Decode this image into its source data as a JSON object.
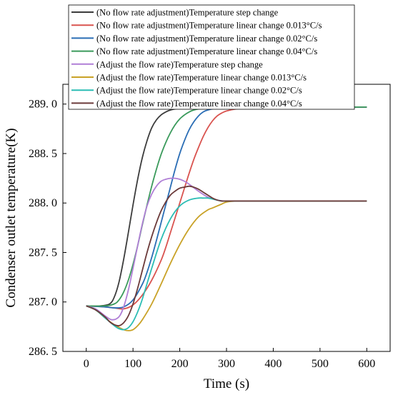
{
  "chart_data": {
    "type": "line",
    "xlabel": "Time (s)",
    "ylabel": "Condenser outlet temperature(K)",
    "xlim": [
      -50,
      650
    ],
    "ylim": [
      286.5,
      289.2
    ],
    "xticks": [
      0,
      100,
      200,
      300,
      400,
      500,
      600
    ],
    "yticks": [
      286.5,
      287.0,
      287.5,
      288.0,
      288.5,
      289.0
    ],
    "xtick_labels": [
      "0",
      "100",
      "200",
      "300",
      "400",
      "500",
      "600"
    ],
    "ytick_labels": [
      "286. 5",
      "287. 0",
      "287. 5",
      "288. 0",
      "288. 5",
      "289. 0"
    ],
    "legend_position": "top-left",
    "series": [
      {
        "name": "(No flow rate adjustment)Temperature step change",
        "color": "#3c3c3c",
        "x": [
          0,
          30,
          50,
          60,
          70,
          80,
          90,
          100,
          110,
          120,
          130,
          140,
          150,
          160,
          170,
          180,
          190,
          200,
          220,
          240,
          260,
          300,
          400,
          600
        ],
        "y": [
          286.96,
          286.96,
          286.98,
          287.05,
          287.2,
          287.43,
          287.7,
          287.98,
          288.24,
          288.46,
          288.63,
          288.76,
          288.84,
          288.89,
          288.92,
          288.94,
          288.95,
          288.96,
          288.965,
          288.97,
          288.97,
          288.97,
          288.97,
          288.97
        ]
      },
      {
        "name": "(No flow rate adjustment)Temperature linear change 0.013°C/s",
        "color": "#d9534f",
        "x": [
          0,
          40,
          60,
          80,
          100,
          120,
          140,
          160,
          170,
          180,
          190,
          200,
          210,
          220,
          230,
          240,
          250,
          260,
          270,
          280,
          290,
          300,
          320,
          350,
          400,
          600
        ],
        "y": [
          286.96,
          286.95,
          286.94,
          286.93,
          286.97,
          287.07,
          287.22,
          287.42,
          287.55,
          287.7,
          287.85,
          288.0,
          288.15,
          288.3,
          288.44,
          288.56,
          288.67,
          288.76,
          288.83,
          288.88,
          288.91,
          288.93,
          288.95,
          288.96,
          288.97,
          288.97
        ]
      },
      {
        "name": "(No flow rate adjustment)Temperature linear change 0.02°C/s",
        "color": "#2a6db5",
        "x": [
          0,
          40,
          60,
          80,
          100,
          120,
          130,
          140,
          150,
          160,
          170,
          180,
          190,
          200,
          210,
          220,
          230,
          240,
          250,
          260,
          280,
          300,
          350,
          400,
          600
        ],
        "y": [
          286.96,
          286.95,
          286.94,
          286.95,
          287.02,
          287.18,
          287.3,
          287.45,
          287.62,
          287.8,
          287.98,
          288.16,
          288.34,
          288.5,
          288.63,
          288.74,
          288.82,
          288.88,
          288.92,
          288.94,
          288.96,
          288.97,
          288.97,
          288.97,
          288.97
        ]
      },
      {
        "name": "(No flow rate adjustment)Temperature linear change 0.04°C/s",
        "color": "#3a9a5b",
        "x": [
          0,
          40,
          60,
          70,
          80,
          90,
          100,
          110,
          120,
          130,
          140,
          150,
          160,
          170,
          180,
          190,
          200,
          210,
          220,
          230,
          240,
          260,
          300,
          400,
          600
        ],
        "y": [
          286.96,
          286.96,
          286.98,
          287.02,
          287.1,
          287.22,
          287.38,
          287.57,
          287.78,
          287.98,
          288.17,
          288.34,
          288.49,
          288.61,
          288.71,
          288.79,
          288.85,
          288.89,
          288.92,
          288.94,
          288.95,
          288.96,
          288.97,
          288.97,
          288.97
        ]
      },
      {
        "name": "(Adjust the flow rate)Temperature step change",
        "color": "#b07fd6",
        "x": [
          0,
          20,
          40,
          55,
          70,
          80,
          90,
          100,
          110,
          120,
          130,
          140,
          150,
          160,
          170,
          180,
          190,
          200,
          210,
          220,
          240,
          260,
          280,
          300,
          350,
          600
        ],
        "y": [
          286.96,
          286.93,
          286.86,
          286.82,
          286.85,
          286.95,
          287.12,
          287.34,
          287.57,
          287.79,
          287.97,
          288.09,
          288.17,
          288.22,
          288.24,
          288.25,
          288.25,
          288.24,
          288.22,
          288.19,
          288.12,
          288.06,
          288.03,
          288.02,
          288.02,
          288.02
        ]
      },
      {
        "name": "(Adjust the flow rate)Temperature linear change 0.013°C/s",
        "color": "#c9a227",
        "x": [
          0,
          20,
          40,
          60,
          80,
          90,
          100,
          110,
          120,
          140,
          160,
          180,
          200,
          220,
          240,
          260,
          270,
          280,
          290,
          300,
          320,
          350,
          400,
          600
        ],
        "y": [
          286.96,
          286.92,
          286.84,
          286.77,
          286.72,
          286.71,
          286.72,
          286.76,
          286.82,
          286.98,
          287.18,
          287.39,
          287.58,
          287.74,
          287.86,
          287.93,
          287.95,
          287.97,
          287.99,
          288.01,
          288.02,
          288.02,
          288.02,
          288.02
        ]
      },
      {
        "name": "(Adjust the flow rate)Temperature linear change 0.02°C/s",
        "color": "#2bbdb4",
        "x": [
          0,
          20,
          40,
          60,
          70,
          80,
          90,
          100,
          110,
          120,
          140,
          160,
          180,
          200,
          220,
          240,
          250,
          260,
          270,
          280,
          290,
          300,
          350,
          600
        ],
        "y": [
          286.96,
          286.92,
          286.84,
          286.76,
          286.73,
          286.72,
          286.74,
          286.8,
          286.9,
          287.03,
          287.34,
          287.63,
          287.84,
          287.97,
          288.03,
          288.05,
          288.05,
          288.05,
          288.04,
          288.03,
          288.02,
          288.02,
          288.02,
          288.02
        ]
      },
      {
        "name": "(Adjust the flow rate)Temperature linear change 0.04°C/s",
        "color": "#6b3a3a",
        "x": [
          0,
          20,
          40,
          50,
          60,
          70,
          80,
          90,
          100,
          110,
          120,
          130,
          140,
          150,
          160,
          170,
          180,
          190,
          200,
          210,
          220,
          230,
          240,
          250,
          260,
          270,
          280,
          290,
          300,
          350,
          600
        ],
        "y": [
          286.96,
          286.92,
          286.85,
          286.8,
          286.77,
          286.76,
          286.79,
          286.86,
          286.98,
          287.14,
          287.32,
          287.5,
          287.66,
          287.8,
          287.92,
          288.01,
          288.08,
          288.12,
          288.15,
          288.16,
          288.17,
          288.16,
          288.14,
          288.11,
          288.08,
          288.05,
          288.03,
          288.02,
          288.02,
          288.02,
          288.02
        ]
      }
    ]
  }
}
